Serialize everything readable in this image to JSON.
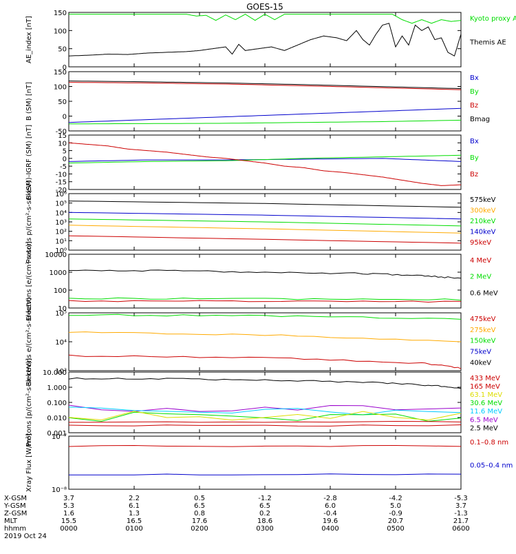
{
  "title": "GOES-15",
  "colors": {
    "black": "#000000",
    "red": "#cc0000",
    "green": "#00dd00",
    "blue": "#0000cc",
    "orange": "#ffaa00",
    "cyan": "#00ccff",
    "yellow": "#dddd00",
    "purple": "#9900cc"
  },
  "chart_data": [
    {
      "type": "line",
      "ylabel": "AE_index [nT]",
      "ylim": [
        0,
        150
      ],
      "yticks": [
        "0",
        "50",
        "100",
        "150"
      ],
      "legend": [
        {
          "label": "Kyoto proxy AE",
          "color": "green"
        },
        {
          "label": "Themis AE",
          "color": "black"
        }
      ],
      "series": [
        {
          "name": "Kyoto proxy AE",
          "color": "green",
          "x": [
            0,
            60,
            120,
            180,
            195,
            210,
            225,
            240,
            255,
            270,
            285,
            300,
            315,
            330,
            345,
            360,
            375,
            390,
            405,
            420,
            435,
            450,
            465,
            480,
            495,
            510,
            525,
            540,
            555,
            570,
            585,
            600
          ],
          "values": [
            145,
            145,
            145,
            145,
            140,
            142,
            128,
            143,
            130,
            145,
            128,
            145,
            130,
            145,
            145,
            145,
            145,
            145,
            145,
            145,
            145,
            145,
            145,
            145,
            145,
            130,
            120,
            130,
            120,
            130,
            125,
            128
          ]
        },
        {
          "name": "Themis AE",
          "color": "black",
          "x": [
            0,
            30,
            60,
            90,
            120,
            150,
            180,
            200,
            220,
            240,
            250,
            260,
            270,
            290,
            310,
            330,
            350,
            370,
            390,
            410,
            425,
            440,
            450,
            460,
            470,
            480,
            490,
            500,
            510,
            520,
            530,
            540,
            550,
            560,
            570,
            580,
            590,
            600
          ],
          "values": [
            30,
            32,
            35,
            34,
            38,
            40,
            42,
            45,
            50,
            55,
            35,
            62,
            45,
            50,
            55,
            45,
            60,
            75,
            85,
            80,
            72,
            100,
            75,
            60,
            90,
            115,
            120,
            55,
            85,
            60,
            115,
            100,
            110,
            75,
            80,
            40,
            30,
            90
          ]
        }
      ]
    },
    {
      "type": "line",
      "ylabel": "B (SM) [nT]",
      "ylim": [
        -60,
        150
      ],
      "yticks": [
        "-50",
        "0",
        "50",
        "100",
        "150"
      ],
      "legend": [
        {
          "label": "Bx",
          "color": "blue"
        },
        {
          "label": "By",
          "color": "green"
        },
        {
          "label": "Bz",
          "color": "red"
        },
        {
          "label": "Bmag",
          "color": "black"
        }
      ],
      "series": [
        {
          "name": "Bx",
          "color": "blue",
          "x": [
            0,
            120,
            240,
            360,
            480,
            600
          ],
          "values": [
            -30,
            -20,
            -10,
            0,
            10,
            20
          ]
        },
        {
          "name": "By",
          "color": "green",
          "x": [
            0,
            120,
            240,
            360,
            480,
            600
          ],
          "values": [
            -35,
            -34,
            -33,
            -30,
            -27,
            -22
          ]
        },
        {
          "name": "Bz",
          "color": "red",
          "x": [
            0,
            120,
            240,
            360,
            480,
            600
          ],
          "values": [
            112,
            110,
            106,
            100,
            93,
            86
          ]
        },
        {
          "name": "Bmag",
          "color": "black",
          "x": [
            0,
            120,
            240,
            360,
            480,
            600
          ],
          "values": [
            117,
            114,
            110,
            104,
            97,
            90
          ]
        }
      ]
    },
    {
      "type": "line",
      "ylabel": "B (SM)-IGRF (SM) [nT]",
      "ylim": [
        -20,
        15
      ],
      "yticks": [
        "-20",
        "-15",
        "-10",
        "-5",
        "0",
        "5",
        "10",
        "15"
      ],
      "legend": [
        {
          "label": "Bx",
          "color": "blue"
        },
        {
          "label": "By",
          "color": "green"
        },
        {
          "label": "Bz",
          "color": "red"
        }
      ],
      "series": [
        {
          "name": "Bx",
          "color": "blue",
          "x": [
            0,
            120,
            240,
            360,
            480,
            540,
            600
          ],
          "values": [
            -2,
            -1,
            -1,
            -0.5,
            0,
            -1,
            -2
          ]
        },
        {
          "name": "By",
          "color": "green",
          "x": [
            0,
            120,
            240,
            360,
            480,
            540,
            600
          ],
          "values": [
            -3,
            -2,
            -1.5,
            0,
            1,
            1.5,
            2
          ]
        },
        {
          "name": "Bz",
          "color": "red",
          "x": [
            0,
            30,
            60,
            90,
            120,
            150,
            180,
            210,
            240,
            270,
            300,
            330,
            360,
            390,
            420,
            450,
            480,
            510,
            540,
            570,
            600
          ],
          "values": [
            10,
            9,
            8,
            6,
            5,
            4,
            2.5,
            1,
            0,
            -1.5,
            -3,
            -5,
            -6,
            -8,
            -9,
            -10.5,
            -12,
            -14,
            -16,
            -17.5,
            -17
          ]
        }
      ]
    },
    {
      "type": "line",
      "ylabel": "Protons p/(cm²-s-sr-keV)",
      "yscale": "log",
      "ylim": [
        0.5,
        1000000
      ],
      "yticks": [
        "10⁰",
        "10¹",
        "10²",
        "10³",
        "10⁴",
        "10⁵",
        "10⁶"
      ],
      "legend": [
        {
          "label": "575keV",
          "color": "black"
        },
        {
          "label": "300keV",
          "color": "orange"
        },
        {
          "label": "210keV",
          "color": "green"
        },
        {
          "label": "140keV",
          "color": "blue"
        },
        {
          "label": "95keV",
          "color": "red"
        }
      ],
      "series": [
        {
          "name": "575keV",
          "color": "black",
          "x": [
            0,
            300,
            600
          ],
          "values": [
            150000,
            80000,
            30000
          ]
        },
        {
          "name": "300keV",
          "color": "orange",
          "x": [
            0,
            300,
            600
          ],
          "values": [
            300,
            120,
            40
          ]
        },
        {
          "name": "210keV",
          "color": "green",
          "x": [
            0,
            300,
            600
          ],
          "values": [
            1500,
            700,
            250
          ]
        },
        {
          "name": "140keV",
          "color": "blue",
          "x": [
            0,
            300,
            600
          ],
          "values": [
            8000,
            4000,
            1500
          ]
        },
        {
          "name": "95keV",
          "color": "red",
          "x": [
            0,
            300,
            600
          ],
          "values": [
            20,
            8,
            3
          ]
        }
      ]
    },
    {
      "type": "line",
      "ylabel": "Electrons [e/(cm²-s-sr)]",
      "yscale": "log",
      "ylim": [
        10,
        10000
      ],
      "yticks": [
        "10",
        "100",
        "1000",
        "10000"
      ],
      "legend": [
        {
          "label": "4 MeV",
          "color": "red"
        },
        {
          "label": "2 MeV",
          "color": "green"
        },
        {
          "label": "0.6 MeV",
          "color": "black"
        }
      ],
      "series": [
        {
          "name": "4 MeV",
          "color": "red",
          "x": [
            0,
            300,
            600
          ],
          "values": [
            25,
            24,
            22
          ]
        },
        {
          "name": "2 MeV",
          "color": "green",
          "x": [
            0,
            300,
            600
          ],
          "values": [
            35,
            32,
            30
          ]
        },
        {
          "name": "0.6 MeV",
          "color": "black",
          "x": [
            0,
            150,
            300,
            450,
            540,
            600
          ],
          "values": [
            1300,
            1200,
            1000,
            850,
            650,
            450
          ]
        }
      ]
    },
    {
      "type": "line",
      "ylabel": "Electrons e/(cm²-s-sr-keV)",
      "yscale": "log",
      "ylim": [
        800,
        100000
      ],
      "yticks": [
        "10³",
        "10⁴",
        "10⁵"
      ],
      "legend": [
        {
          "label": "475keV",
          "color": "red"
        },
        {
          "label": "275keV",
          "color": "orange"
        },
        {
          "label": "150keV",
          "color": "green"
        },
        {
          "label": "75keV",
          "color": "blue"
        },
        {
          "label": "40keV",
          "color": "black"
        }
      ],
      "series": [
        {
          "name": "475keV",
          "color": "red",
          "x": [
            0,
            300,
            540,
            600
          ],
          "values": [
            2800,
            2400,
            1500,
            1000
          ]
        },
        {
          "name": "275keV",
          "color": "orange",
          "x": [
            0,
            300,
            600
          ],
          "values": [
            20000,
            16000,
            9000
          ]
        },
        {
          "name": "150keV",
          "color": "green",
          "x": [
            0,
            300,
            600
          ],
          "values": [
            85000,
            78000,
            60000
          ]
        }
      ]
    },
    {
      "type": "line",
      "ylabel": "Protons [p/(cm²-s-sr-keV)]",
      "yscale": "log",
      "ylim": [
        0.001,
        100
      ],
      "yticks": [
        "0.001",
        "0.010",
        "0.100",
        "1.000",
        "10.000"
      ],
      "legend": [
        {
          "label": "433 MeV",
          "color": "red"
        },
        {
          "label": "165 MeV",
          "color": "red"
        },
        {
          "label": "63.1 MeV",
          "color": "yellow"
        },
        {
          "label": "30.6 MeV",
          "color": "green"
        },
        {
          "label": "11.6 MeV",
          "color": "cyan"
        },
        {
          "label": "6.5 MeV",
          "color": "purple"
        },
        {
          "label": "2.5 MeV",
          "color": "black"
        }
      ],
      "series": [
        {
          "name": "2.5 MeV",
          "color": "black",
          "x": [
            0,
            150,
            300,
            450,
            540,
            600
          ],
          "values": [
            30,
            28,
            22,
            15,
            9,
            5
          ]
        },
        {
          "name": "6.5 MeV",
          "color": "purple",
          "x": [
            0,
            600
          ],
          "values": [
            0.09,
            0.09
          ]
        },
        {
          "name": "11.6 MeV",
          "color": "cyan",
          "x": [
            0,
            600
          ],
          "values": [
            0.06,
            0.06
          ]
        },
        {
          "name": "30.6 MeV",
          "color": "green",
          "x": [
            0,
            600
          ],
          "values": [
            0.02,
            0.02
          ]
        },
        {
          "name": "63.1 MeV",
          "color": "yellow",
          "x": [
            0,
            600
          ],
          "values": [
            0.025,
            0.025
          ]
        },
        {
          "name": "165 MeV",
          "color": "red",
          "x": [
            0,
            600
          ],
          "values": [
            0.008,
            0.008
          ]
        },
        {
          "name": "433 MeV",
          "color": "red",
          "x": [
            0,
            600
          ],
          "values": [
            0.004,
            0.004
          ]
        }
      ]
    },
    {
      "type": "line",
      "ylabel": "Xray Flux [W/m²]",
      "yscale": "log",
      "ylim": [
        1e-08,
        1e-07
      ],
      "yticks": [
        "10⁻⁸",
        "10⁻⁷"
      ],
      "legend": [
        {
          "label": "0.1–0.8 nm",
          "color": "red"
        },
        {
          "label": "0.05–0.4 nm",
          "color": "blue"
        }
      ],
      "series": [
        {
          "name": "0.1–0.8 nm",
          "color": "red",
          "x": [
            0,
            600
          ],
          "values": [
            6.5e-08,
            6.5e-08
          ]
        },
        {
          "name": "0.05–0.4 nm",
          "color": "blue",
          "x": [
            0,
            600
          ],
          "values": [
            1.9e-08,
            1.9e-08
          ]
        }
      ]
    }
  ],
  "footer": {
    "row_labels": [
      "X-GSM",
      "Y-GSM",
      "Z-GSM",
      "MLT",
      "hhmm",
      "2019 Oct 24"
    ],
    "columns": [
      [
        "3.7",
        "5.3",
        "1.6",
        "15.5",
        "0000"
      ],
      [
        "2.2",
        "6.1",
        "1.3",
        "16.5",
        "0100"
      ],
      [
        "0.5",
        "6.5",
        "0.8",
        "17.6",
        "0200"
      ],
      [
        "-1.2",
        "6.5",
        "0.2",
        "18.6",
        "0300"
      ],
      [
        "-2.8",
        "6.0",
        "-0.4",
        "19.6",
        "0400"
      ],
      [
        "-4.2",
        "5.0",
        "-0.9",
        "20.7",
        "0500"
      ],
      [
        "-5.3",
        "3.7",
        "-1.3",
        "21.7",
        "0600"
      ]
    ]
  }
}
